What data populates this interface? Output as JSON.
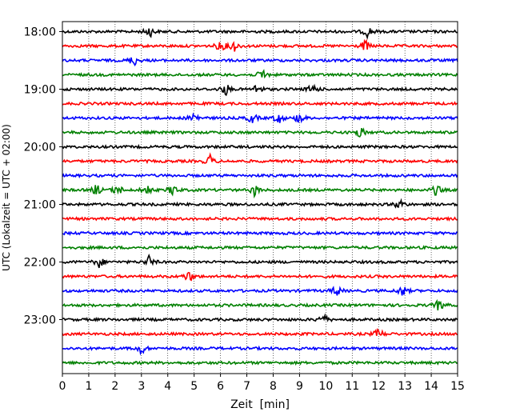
{
  "chart_data": {
    "type": "line",
    "title": "",
    "xlabel": "Zeit  [min]",
    "ylabel": "UTC (Lokalzeit = UTC + 02:00)",
    "xlim": [
      0,
      15
    ],
    "x_ticks": [
      "0",
      "1",
      "2",
      "3",
      "4",
      "5",
      "6",
      "7",
      "8",
      "9",
      "10",
      "11",
      "12",
      "13",
      "14",
      "15"
    ],
    "y_tick_labels": [
      "18:00",
      "19:00",
      "20:00",
      "21:00",
      "22:00",
      "23:00"
    ],
    "grid": "vertical dotted lines at each minute",
    "trace_interval_minutes": 15,
    "trace_colors": [
      "#000000",
      "#ff0000",
      "#0000ff",
      "#008000"
    ],
    "traces": [
      {
        "start": "18:00",
        "events_min": [
          3.3,
          11.6
        ]
      },
      {
        "start": "18:15",
        "events_min": [
          6.0,
          6.5,
          11.5
        ]
      },
      {
        "start": "18:30",
        "events_min": [
          2.7
        ]
      },
      {
        "start": "18:45",
        "events_min": [
          7.6
        ]
      },
      {
        "start": "19:00",
        "events_min": [
          6.2,
          7.4,
          9.5
        ]
      },
      {
        "start": "19:15",
        "events_min": []
      },
      {
        "start": "19:30",
        "events_min": [
          5.0,
          7.2,
          8.2,
          9.0
        ]
      },
      {
        "start": "19:45",
        "events_min": [
          11.3
        ]
      },
      {
        "start": "20:00",
        "events_min": []
      },
      {
        "start": "20:15",
        "events_min": [
          5.6
        ]
      },
      {
        "start": "20:30",
        "events_min": []
      },
      {
        "start": "20:45",
        "events_min": [
          1.3,
          2.1,
          3.2,
          4.2,
          7.3,
          14.2
        ]
      },
      {
        "start": "21:00",
        "events_min": [
          12.8
        ]
      },
      {
        "start": "21:15",
        "events_min": []
      },
      {
        "start": "21:30",
        "events_min": []
      },
      {
        "start": "21:45",
        "events_min": []
      },
      {
        "start": "22:00",
        "events_min": [
          1.4,
          3.3
        ]
      },
      {
        "start": "22:15",
        "events_min": [
          4.8
        ]
      },
      {
        "start": "22:30",
        "events_min": [
          10.4,
          12.9
        ]
      },
      {
        "start": "22:45",
        "events_min": [
          14.3
        ]
      },
      {
        "start": "23:00",
        "events_min": [
          9.9
        ]
      },
      {
        "start": "23:15",
        "events_min": [
          12.0
        ]
      },
      {
        "start": "23:30",
        "events_min": [
          3.0
        ]
      },
      {
        "start": "23:45",
        "events_min": []
      }
    ]
  }
}
